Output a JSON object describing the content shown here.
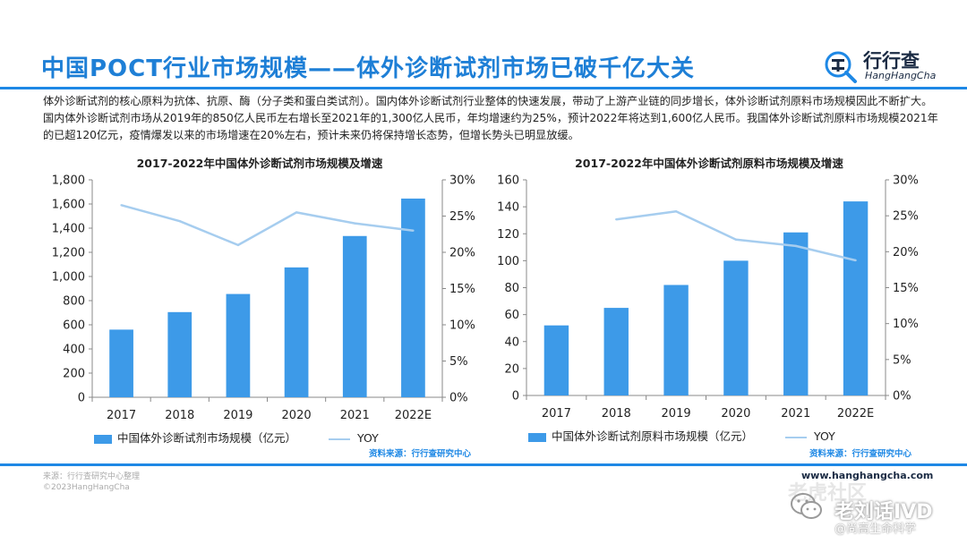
{
  "page": {
    "title": "中国POCT行业市场规模——体外诊断试剂市场已破千亿大关",
    "intro": "体外诊断试剂的核心原料为抗体、抗原、酶（分子类和蛋白类试剂）。国内体外诊断试剂行业整体的快速发展，带动了上游产业链的同步增长，体外诊断试剂原料市场规模因此不断扩大。国内体外诊断试剂市场从2019年的850亿人民币左右增长至2021年的1,300亿人民币，年均增速约为25%，预计2022年将达到1,600亿人民币。我国体外诊断试剂原料市场规模2021年的已超120亿元，疫情爆发以来的市场增速在20%左右，预计未来仍将保持增长态势，但增长势头已明显放缓。"
  },
  "logo": {
    "name_cn": "行行查",
    "name_en": "HangHangCha",
    "icon": "search-logo-icon"
  },
  "footer": {
    "source_note": "来源：行行查研究中心整理",
    "copyright": "©2023HangHangCha",
    "url": "www.hanghangcha.com"
  },
  "watermark": {
    "line1": "老虎社区",
    "line2": "老刘话IVD",
    "line3": "@尚高生命科学",
    "icon": "wechat-icon"
  },
  "colors": {
    "accent": "#1e88e5",
    "bar": "#3d9ae8",
    "line": "#a6cdef"
  },
  "chart_data": [
    {
      "type": "bar",
      "title": "2017-2022年中国体外诊断试剂市场规模及增速",
      "categories": [
        "2017",
        "2018",
        "2019",
        "2020",
        "2021",
        "2022E"
      ],
      "series": [
        {
          "name": "中国体外诊断试剂市场规模（亿元）",
          "type": "bar",
          "axis": "left",
          "values": [
            560,
            705,
            855,
            1075,
            1335,
            1645
          ]
        },
        {
          "name": "YOY",
          "type": "line",
          "axis": "right",
          "values": [
            0.265,
            0.243,
            0.21,
            0.255,
            0.24,
            0.23
          ]
        }
      ],
      "ylim": [
        0,
        1800
      ],
      "y_ticks": [
        "0",
        "200",
        "400",
        "600",
        "800",
        "1,000",
        "1,200",
        "1,400",
        "1,600",
        "1,800"
      ],
      "y2lim": [
        0,
        0.3
      ],
      "y2_ticks": [
        "0%",
        "5%",
        "10%",
        "15%",
        "20%",
        "25%",
        "30%"
      ],
      "source": "资料来源：行行查研究中心",
      "legend": "bottom"
    },
    {
      "type": "bar",
      "title": "2017-2022年中国体外诊断试剂原料市场规模及增速",
      "categories": [
        "2017",
        "2018",
        "2019",
        "2020",
        "2021",
        "2022E"
      ],
      "series": [
        {
          "name": "中国体外诊断试剂原料市场规模（亿元）",
          "type": "bar",
          "axis": "left",
          "values": [
            52,
            65,
            82,
            100,
            121,
            144
          ]
        },
        {
          "name": "YOY",
          "type": "line",
          "axis": "right",
          "values": [
            null,
            0.245,
            0.256,
            0.217,
            0.208,
            0.188
          ]
        }
      ],
      "ylim": [
        0,
        160
      ],
      "y_ticks": [
        "0",
        "20",
        "40",
        "60",
        "80",
        "100",
        "120",
        "140",
        "160"
      ],
      "y2lim": [
        0,
        0.3
      ],
      "y2_ticks": [
        "0%",
        "5%",
        "10%",
        "15%",
        "20%",
        "25%",
        "30%"
      ],
      "source": "资料来源：行行查研究中心",
      "legend": "bottom"
    }
  ]
}
